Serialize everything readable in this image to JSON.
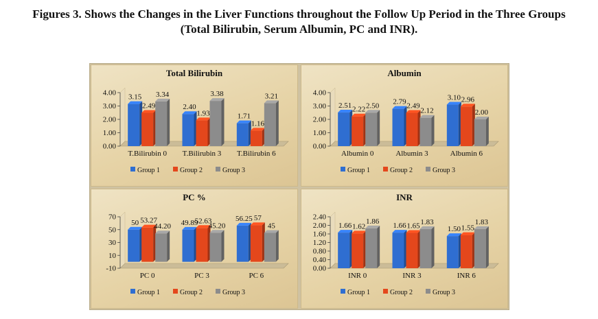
{
  "figure": {
    "title_line1": "Figures 3. Shows the Changes in the Liver Functions throughout the Follow Up Period in the Three Groups",
    "title_line2": "(Total Bilirubin, Serum Albumin, PC and INR)."
  },
  "colors": {
    "group1": "#2f6ed1",
    "group2": "#e4471c",
    "group3": "#8c8c8c"
  },
  "chart_data": [
    {
      "type": "bar",
      "title": "Total Bilirubin",
      "categories": [
        "T.Bilirubin 0",
        "T.Bilirubin 3",
        "T.Bilirubin 6"
      ],
      "series": [
        {
          "name": "Group 1",
          "values": [
            3.15,
            2.4,
            1.71
          ]
        },
        {
          "name": "Group 2",
          "values": [
            2.49,
            1.93,
            1.16
          ]
        },
        {
          "name": "Group 3",
          "values": [
            3.34,
            3.38,
            3.21
          ]
        }
      ],
      "value_labels": [
        [
          "3.15",
          "2.40",
          "1.71"
        ],
        [
          "2.49",
          "1.93",
          "1.16"
        ],
        [
          "3.34",
          "3.38",
          "3.21"
        ]
      ],
      "yticks": [
        "0.00",
        "1.00",
        "2.00",
        "3.00",
        "4.00"
      ],
      "ylim": [
        0,
        4
      ],
      "legend": [
        "Group 1",
        "Group 2",
        "Group 3"
      ],
      "legend_position": "bottom"
    },
    {
      "type": "bar",
      "title": "Albumin",
      "categories": [
        "Albumin 0",
        "Albumin 3",
        "Albumin 6"
      ],
      "series": [
        {
          "name": "Group 1",
          "values": [
            2.51,
            2.79,
            3.1
          ]
        },
        {
          "name": "Group 2",
          "values": [
            2.22,
            2.49,
            2.96
          ]
        },
        {
          "name": "Group 3",
          "values": [
            2.5,
            2.12,
            2.0
          ]
        }
      ],
      "value_labels": [
        [
          "2.51",
          "2.79",
          "3.10"
        ],
        [
          "2.22",
          "2.49",
          "2.96"
        ],
        [
          "2.50",
          "2.12",
          "2.00"
        ]
      ],
      "yticks": [
        "0.00",
        "1.00",
        "2.00",
        "3.00",
        "4.00"
      ],
      "ylim": [
        0,
        4
      ],
      "legend": [
        "Group 1",
        "Group 2",
        "Group 3"
      ],
      "legend_position": "bottom"
    },
    {
      "type": "bar",
      "title": "PC %",
      "categories": [
        "PC 0",
        "PC 3",
        "PC 6"
      ],
      "series": [
        {
          "name": "Group 1",
          "values": [
            50,
            49.89,
            56.25
          ]
        },
        {
          "name": "Group 2",
          "values": [
            53.27,
            52.63,
            57
          ]
        },
        {
          "name": "Group 3",
          "values": [
            44.2,
            45.2,
            45
          ]
        }
      ],
      "value_labels": [
        [
          "50",
          "49.89",
          "56.25"
        ],
        [
          "53.27",
          "52.63",
          "57"
        ],
        [
          "44.20",
          "45.20",
          "45"
        ]
      ],
      "yticks": [
        "-10",
        "10",
        "30",
        "50",
        "70"
      ],
      "ylim": [
        -10,
        70
      ],
      "legend": [
        "Group 1",
        "Group 2",
        "Group 3"
      ],
      "legend_position": "bottom"
    },
    {
      "type": "bar",
      "title": "INR",
      "categories": [
        "INR 0",
        "INR 3",
        "INR 6"
      ],
      "series": [
        {
          "name": "Group 1",
          "values": [
            1.66,
            1.66,
            1.5
          ]
        },
        {
          "name": "Group 2",
          "values": [
            1.62,
            1.65,
            1.55
          ]
        },
        {
          "name": "Group 3",
          "values": [
            1.86,
            1.83,
            1.83
          ]
        }
      ],
      "value_labels": [
        [
          "1.66",
          "1.66",
          "1.50"
        ],
        [
          "1.62",
          "1.65",
          "1.55"
        ],
        [
          "1.86",
          "1.83",
          "1.83"
        ]
      ],
      "yticks": [
        "0.00",
        "0.40",
        "0.80",
        "1.20",
        "1.60",
        "2.00",
        "2.40"
      ],
      "ylim": [
        0,
        2.4
      ],
      "legend": [
        "Group 1",
        "Group 2",
        "Group 3"
      ],
      "legend_position": "bottom"
    }
  ]
}
